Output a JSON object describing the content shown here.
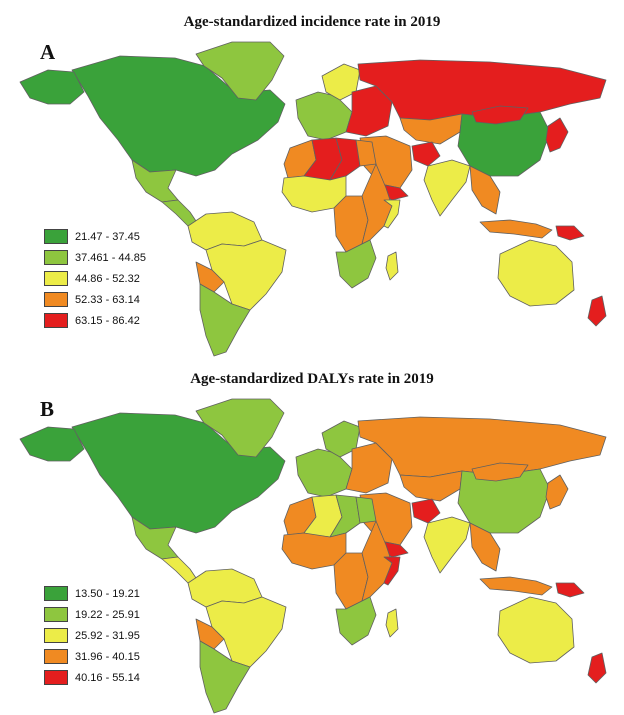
{
  "colors": {
    "c1": "#3aa23a",
    "c2": "#8ec63f",
    "c3": "#ecec48",
    "c4": "#f08a22",
    "c5": "#e41e1e",
    "ocean": "#ffffff",
    "border": "#606060"
  },
  "panels": [
    {
      "letter": "A",
      "title": "Age-standardized incidence rate in 2019",
      "legend": [
        {
          "label": "21.47 - 37.45",
          "color": "#3aa23a"
        },
        {
          "label": "37.461 - 44.85",
          "color": "#8ec63f"
        },
        {
          "label": "44.86 - 52.32",
          "color": "#ecec48"
        },
        {
          "label": "52.33 - 63.14",
          "color": "#f08a22"
        },
        {
          "label": "63.15 - 86.42",
          "color": "#e41e1e"
        }
      ]
    },
    {
      "letter": "B",
      "title": "Age-standardized DALYs rate in 2019",
      "legend": [
        {
          "label": "13.50 - 19.21",
          "color": "#3aa23a"
        },
        {
          "label": "19.22 - 25.91",
          "color": "#8ec63f"
        },
        {
          "label": "25.92 - 31.95",
          "color": "#ecec48"
        },
        {
          "label": "31.96 - 40.15",
          "color": "#f08a22"
        },
        {
          "label": "40.16 - 55.14",
          "color": "#e41e1e"
        }
      ]
    }
  ],
  "regions": [
    {
      "name": "North America",
      "a": "c1",
      "b": "c1"
    },
    {
      "name": "Alaska",
      "a": "c1",
      "b": "c1"
    },
    {
      "name": "Greenland",
      "a": "c2",
      "b": "c2"
    },
    {
      "name": "Mexico",
      "a": "c2",
      "b": "c2"
    },
    {
      "name": "Central America",
      "a": "c2",
      "b": "c3"
    },
    {
      "name": "South America North",
      "a": "c3",
      "b": "c3"
    },
    {
      "name": "Brazil",
      "a": "c3",
      "b": "c3"
    },
    {
      "name": "Bolivia",
      "a": "c4",
      "b": "c4"
    },
    {
      "name": "Southern Cone",
      "a": "c2",
      "b": "c2"
    },
    {
      "name": "Western Europe",
      "a": "c2",
      "b": "c2"
    },
    {
      "name": "Scandinavia",
      "a": "c3",
      "b": "c2"
    },
    {
      "name": "Eastern Europe",
      "a": "c5",
      "b": "c4"
    },
    {
      "name": "Russia",
      "a": "c5",
      "b": "c4"
    },
    {
      "name": "Central Asia",
      "a": "c4",
      "b": "c4"
    },
    {
      "name": "China",
      "a": "c1",
      "b": "c2"
    },
    {
      "name": "Mongolia",
      "a": "c5",
      "b": "c4"
    },
    {
      "name": "Middle East",
      "a": "c4",
      "b": "c4"
    },
    {
      "name": "Yemen",
      "a": "c5",
      "b": "c5"
    },
    {
      "name": "Afghanistan",
      "a": "c5",
      "b": "c5"
    },
    {
      "name": "India",
      "a": "c3",
      "b": "c3"
    },
    {
      "name": "Southeast Asia",
      "a": "c4",
      "b": "c4"
    },
    {
      "name": "Japan",
      "a": "c5",
      "b": "c4"
    },
    {
      "name": "North Africa West",
      "a": "c4",
      "b": "c4"
    },
    {
      "name": "Algeria",
      "a": "c5",
      "b": "c3"
    },
    {
      "name": "Libya",
      "a": "c5",
      "b": "c2"
    },
    {
      "name": "Egypt",
      "a": "c4",
      "b": "c2"
    },
    {
      "name": "West Africa",
      "a": "c3",
      "b": "c4"
    },
    {
      "name": "Central Africa",
      "a": "c4",
      "b": "c4"
    },
    {
      "name": "East Africa",
      "a": "c4",
      "b": "c4"
    },
    {
      "name": "Somalia",
      "a": "c3",
      "b": "c5"
    },
    {
      "name": "Southern Africa",
      "a": "c2",
      "b": "c2"
    },
    {
      "name": "Madagascar",
      "a": "c3",
      "b": "c3"
    },
    {
      "name": "Indonesia",
      "a": "c4",
      "b": "c4"
    },
    {
      "name": "Papua New Guinea",
      "a": "c5",
      "b": "c5"
    },
    {
      "name": "Australia",
      "a": "c3",
      "b": "c3"
    },
    {
      "name": "New Zealand",
      "a": "c5",
      "b": "c5"
    }
  ]
}
